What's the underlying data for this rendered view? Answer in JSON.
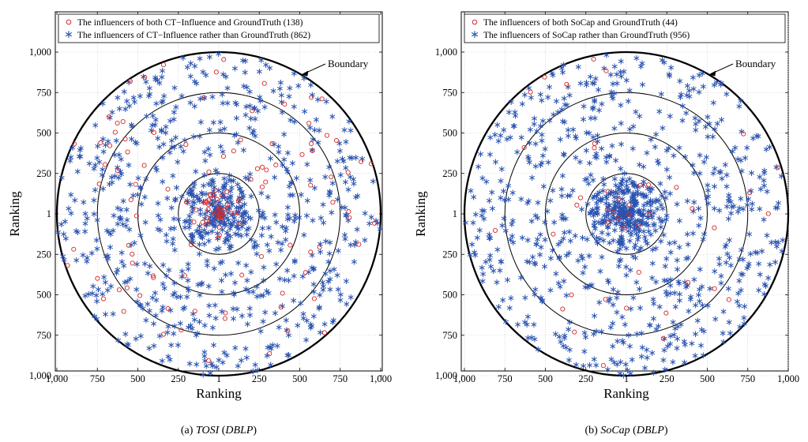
{
  "chart_data": [
    {
      "type": "scatter",
      "subtitle_prefix": "(a)",
      "subtitle_method": "TOSI",
      "subtitle_dataset": "DBLP",
      "xlabel": "Ranking",
      "ylabel": "Ranking",
      "xlim": [
        -1000,
        1000
      ],
      "ylim": [
        -1000,
        1000
      ],
      "x_ticks": [
        "1,000",
        "750",
        "500",
        "250",
        "1",
        "250",
        "500",
        "750",
        "1,000"
      ],
      "y_ticks": [
        "1,000",
        "750",
        "500",
        "250",
        "1",
        "250",
        "500",
        "750",
        "1,000"
      ],
      "boundary_label": "Boundary",
      "circle_radii": [
        250,
        500,
        750,
        1000
      ],
      "grid": true,
      "legend_position": "top",
      "series": [
        {
          "name": "The influencers of both CT−Influence and GroundTruth (138)",
          "marker": "circle",
          "color": "#d42a2a",
          "count": 138
        },
        {
          "name": "The influencers of CT−Influence rather than GroundTruth (862)",
          "marker": "star",
          "color": "#2a53b0",
          "count": 862
        }
      ]
    },
    {
      "type": "scatter",
      "subtitle_prefix": "(b)",
      "subtitle_method": "SoCap",
      "subtitle_dataset": "DBLP",
      "xlabel": "Ranking",
      "ylabel": "Ranking",
      "xlim": [
        -1000,
        1000
      ],
      "ylim": [
        -1000,
        1000
      ],
      "x_ticks": [
        "1,000",
        "750",
        "500",
        "250",
        "1",
        "250",
        "500",
        "750",
        "1,000"
      ],
      "y_ticks": [
        "1,000",
        "750",
        "500",
        "250",
        "1",
        "250",
        "500",
        "750",
        "1,000"
      ],
      "boundary_label": "Boundary",
      "circle_radii": [
        250,
        500,
        750,
        1000
      ],
      "grid": true,
      "legend_position": "top",
      "series": [
        {
          "name": "The influencers of both SoCap and GroundTruth (44)",
          "marker": "circle",
          "color": "#d42a2a",
          "count": 44
        },
        {
          "name": "The influencers of SoCap rather than GroundTruth (956)",
          "marker": "star",
          "color": "#2a53b0",
          "count": 956
        }
      ]
    }
  ]
}
